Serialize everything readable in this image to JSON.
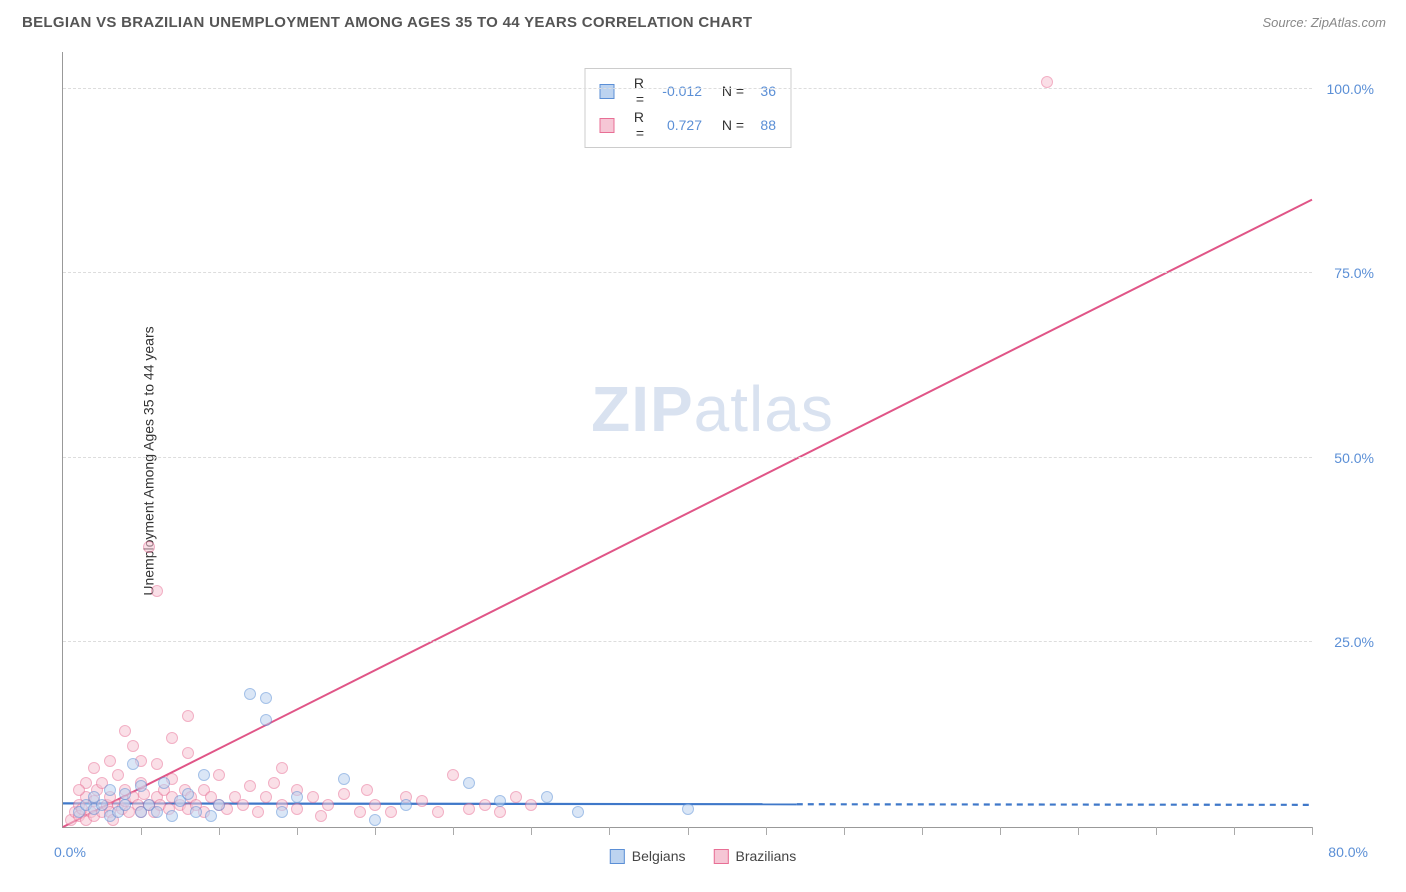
{
  "title": "BELGIAN VS BRAZILIAN UNEMPLOYMENT AMONG AGES 35 TO 44 YEARS CORRELATION CHART",
  "source": "Source: ZipAtlas.com",
  "ylabel": "Unemployment Among Ages 35 to 44 years",
  "watermark_a": "ZIP",
  "watermark_b": "atlas",
  "chart": {
    "type": "scatter",
    "xlim": [
      0,
      80
    ],
    "ylim": [
      0,
      105
    ],
    "x_origin_label": "0.0%",
    "x_max_label": "80.0%",
    "yticks": [
      25,
      50,
      75,
      100
    ],
    "ytick_labels": [
      "25.0%",
      "50.0%",
      "75.0%",
      "100.0%"
    ],
    "xtick_positions": [
      5,
      10,
      15,
      20,
      25,
      30,
      35,
      40,
      45,
      50,
      55,
      60,
      65,
      70,
      75,
      80
    ],
    "grid_color": "#dddddd",
    "axis_color": "#999999",
    "label_color": "#5b8fd6",
    "background_color": "#ffffff",
    "marker_radius": 6,
    "marker_stroke_width": 1.2,
    "series": [
      {
        "name": "Belgians",
        "fill": "#bcd3f0",
        "stroke": "#5b8fd6",
        "fill_opacity": 0.55,
        "R": "-0.012",
        "N": "36",
        "trend": {
          "x1": 0,
          "y1": 3.2,
          "x2": 80,
          "y2": 3.0,
          "color": "#3f78c9",
          "width": 2.2,
          "solid_until_x": 47
        },
        "points": [
          [
            1,
            2
          ],
          [
            1.5,
            3
          ],
          [
            2,
            2.5
          ],
          [
            2,
            4
          ],
          [
            2.5,
            3
          ],
          [
            3,
            1.5
          ],
          [
            3,
            5
          ],
          [
            3.5,
            2
          ],
          [
            4,
            3
          ],
          [
            4,
            4.5
          ],
          [
            4.5,
            8.5
          ],
          [
            5,
            2
          ],
          [
            5,
            5.5
          ],
          [
            5.5,
            3
          ],
          [
            6,
            2
          ],
          [
            6.5,
            6
          ],
          [
            7,
            1.5
          ],
          [
            7.5,
            3.5
          ],
          [
            8,
            4.5
          ],
          [
            8.5,
            2
          ],
          [
            9,
            7
          ],
          [
            9.5,
            1.5
          ],
          [
            10,
            3
          ],
          [
            12,
            18
          ],
          [
            13,
            17.5
          ],
          [
            13,
            14.5
          ],
          [
            14,
            2
          ],
          [
            15,
            4
          ],
          [
            18,
            6.5
          ],
          [
            20,
            1
          ],
          [
            22,
            3
          ],
          [
            26,
            6
          ],
          [
            28,
            3.5
          ],
          [
            31,
            4
          ],
          [
            40,
            2.5
          ],
          [
            33,
            2
          ]
        ]
      },
      {
        "name": "Brazilians",
        "fill": "#f6c6d5",
        "stroke": "#e86f95",
        "fill_opacity": 0.55,
        "R": "0.727",
        "N": "88",
        "trend": {
          "x1": 0,
          "y1": 0,
          "x2": 80,
          "y2": 85,
          "color": "#e05587",
          "width": 2,
          "solid_until_x": 80
        },
        "points": [
          [
            0.5,
            1
          ],
          [
            0.8,
            2
          ],
          [
            1,
            1.5
          ],
          [
            1,
            3
          ],
          [
            1.2,
            2.5
          ],
          [
            1.5,
            1
          ],
          [
            1.5,
            4
          ],
          [
            1.8,
            2
          ],
          [
            2,
            1.5
          ],
          [
            2,
            3.5
          ],
          [
            2.2,
            5
          ],
          [
            2.5,
            2
          ],
          [
            2.5,
            6
          ],
          [
            2.8,
            3
          ],
          [
            3,
            2
          ],
          [
            3,
            4
          ],
          [
            3.2,
            1
          ],
          [
            3.5,
            3
          ],
          [
            3.5,
            7
          ],
          [
            3.8,
            2.5
          ],
          [
            4,
            3.5
          ],
          [
            4,
            5
          ],
          [
            4.2,
            2
          ],
          [
            4.5,
            4
          ],
          [
            4.5,
            11
          ],
          [
            4.8,
            3
          ],
          [
            5,
            2
          ],
          [
            5,
            6
          ],
          [
            5.2,
            4.5
          ],
          [
            5.5,
            3
          ],
          [
            5.5,
            38
          ],
          [
            5.8,
            2
          ],
          [
            6,
            4
          ],
          [
            6,
            32
          ],
          [
            6.2,
            3
          ],
          [
            6.5,
            5
          ],
          [
            6.8,
            2.5
          ],
          [
            7,
            4
          ],
          [
            7,
            12
          ],
          [
            7.5,
            3
          ],
          [
            7.8,
            5
          ],
          [
            8,
            2.5
          ],
          [
            8,
            10
          ],
          [
            8.2,
            4
          ],
          [
            8.5,
            3
          ],
          [
            9,
            5
          ],
          [
            9,
            2
          ],
          [
            9.5,
            4
          ],
          [
            10,
            3
          ],
          [
            10,
            7
          ],
          [
            10.5,
            2.5
          ],
          [
            11,
            4
          ],
          [
            11.5,
            3
          ],
          [
            12,
            5.5
          ],
          [
            12.5,
            2
          ],
          [
            13,
            4
          ],
          [
            13.5,
            6
          ],
          [
            14,
            3
          ],
          [
            14,
            8
          ],
          [
            15,
            2.5
          ],
          [
            15,
            5
          ],
          [
            16,
            4
          ],
          [
            16.5,
            1.5
          ],
          [
            17,
            3
          ],
          [
            18,
            4.5
          ],
          [
            19,
            2
          ],
          [
            19.5,
            5
          ],
          [
            20,
            3
          ],
          [
            21,
            2
          ],
          [
            22,
            4
          ],
          [
            23,
            3.5
          ],
          [
            24,
            2
          ],
          [
            25,
            7
          ],
          [
            26,
            2.5
          ],
          [
            27,
            3
          ],
          [
            28,
            2
          ],
          [
            29,
            4
          ],
          [
            30,
            3
          ],
          [
            8,
            15
          ],
          [
            4,
            13
          ],
          [
            3,
            9
          ],
          [
            2,
            8
          ],
          [
            1.5,
            6
          ],
          [
            1,
            5
          ],
          [
            6,
            8.5
          ],
          [
            5,
            9
          ],
          [
            7,
            6.5
          ],
          [
            63,
            101
          ]
        ]
      }
    ]
  },
  "legend": {
    "items": [
      {
        "label": "Belgians",
        "fill": "#bcd3f0",
        "stroke": "#5b8fd6"
      },
      {
        "label": "Brazilians",
        "fill": "#f6c6d5",
        "stroke": "#e86f95"
      }
    ]
  }
}
